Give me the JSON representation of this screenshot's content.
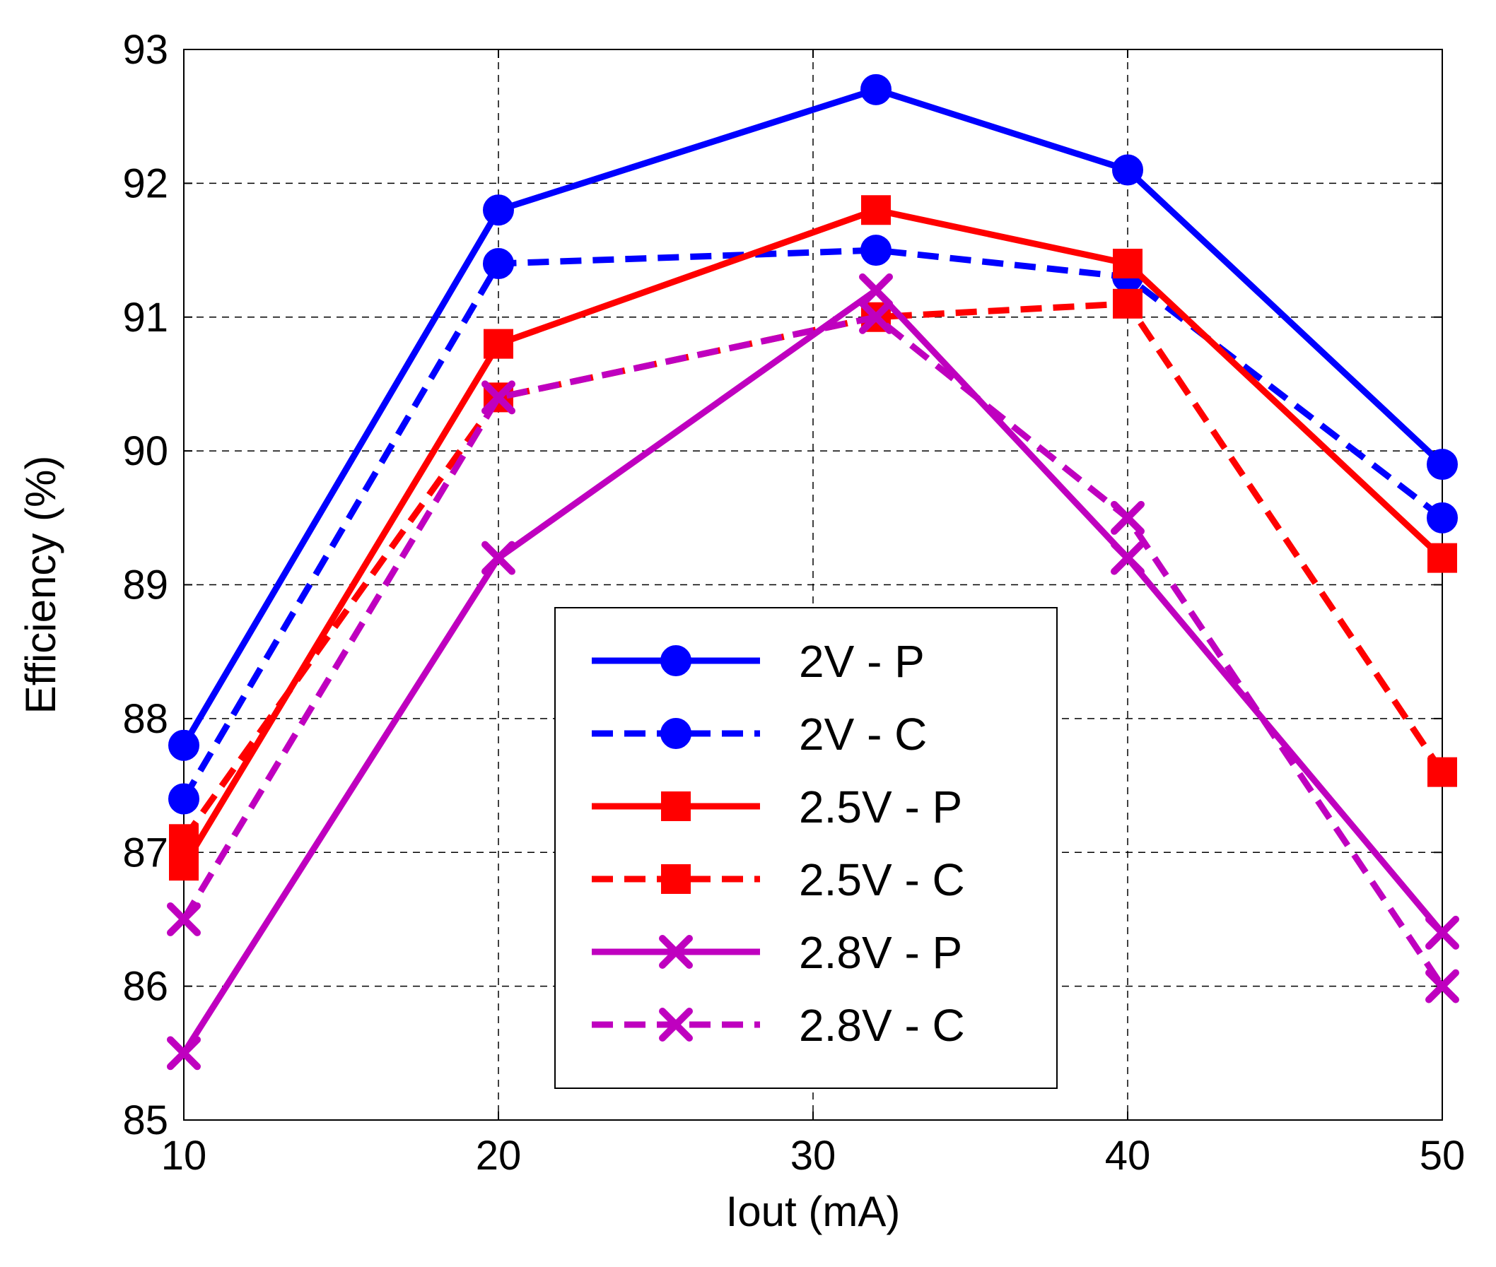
{
  "chart_data": {
    "type": "line",
    "title": "",
    "xlabel": "Iout (mA)",
    "ylabel": "Efficiency (%)",
    "xlim": [
      10,
      50
    ],
    "ylim": [
      85,
      93
    ],
    "xticks": [
      10,
      20,
      30,
      40,
      50
    ],
    "yticks": [
      85,
      86,
      87,
      88,
      89,
      90,
      91,
      92,
      93
    ],
    "grid": true,
    "legend_position": "bottom-center",
    "x": [
      10,
      20,
      32,
      40,
      50
    ],
    "series": [
      {
        "name": "2V - P",
        "values": [
          87.8,
          91.8,
          92.7,
          92.1,
          89.9
        ],
        "color": "#0000FF",
        "linestyle": "solid",
        "marker": "circle"
      },
      {
        "name": "2V - C",
        "values": [
          87.4,
          91.4,
          91.5,
          91.3,
          89.5
        ],
        "color": "#0000FF",
        "linestyle": "dashed",
        "marker": "circle"
      },
      {
        "name": "2.5V - P",
        "values": [
          86.9,
          90.8,
          91.8,
          91.4,
          89.2
        ],
        "color": "#FF0000",
        "linestyle": "solid",
        "marker": "square"
      },
      {
        "name": "2.5V - C",
        "values": [
          87.1,
          90.4,
          91.0,
          91.1,
          87.6
        ],
        "color": "#FF0000",
        "linestyle": "dashed",
        "marker": "square"
      },
      {
        "name": "2.8V - P",
        "values": [
          85.5,
          89.2,
          91.2,
          89.2,
          86.4
        ],
        "color": "#BF00BF",
        "linestyle": "solid",
        "marker": "x"
      },
      {
        "name": "2.8V - C",
        "values": [
          86.5,
          90.4,
          91.0,
          89.5,
          86.0
        ],
        "color": "#BF00BF",
        "linestyle": "dashed",
        "marker": "x"
      }
    ]
  }
}
